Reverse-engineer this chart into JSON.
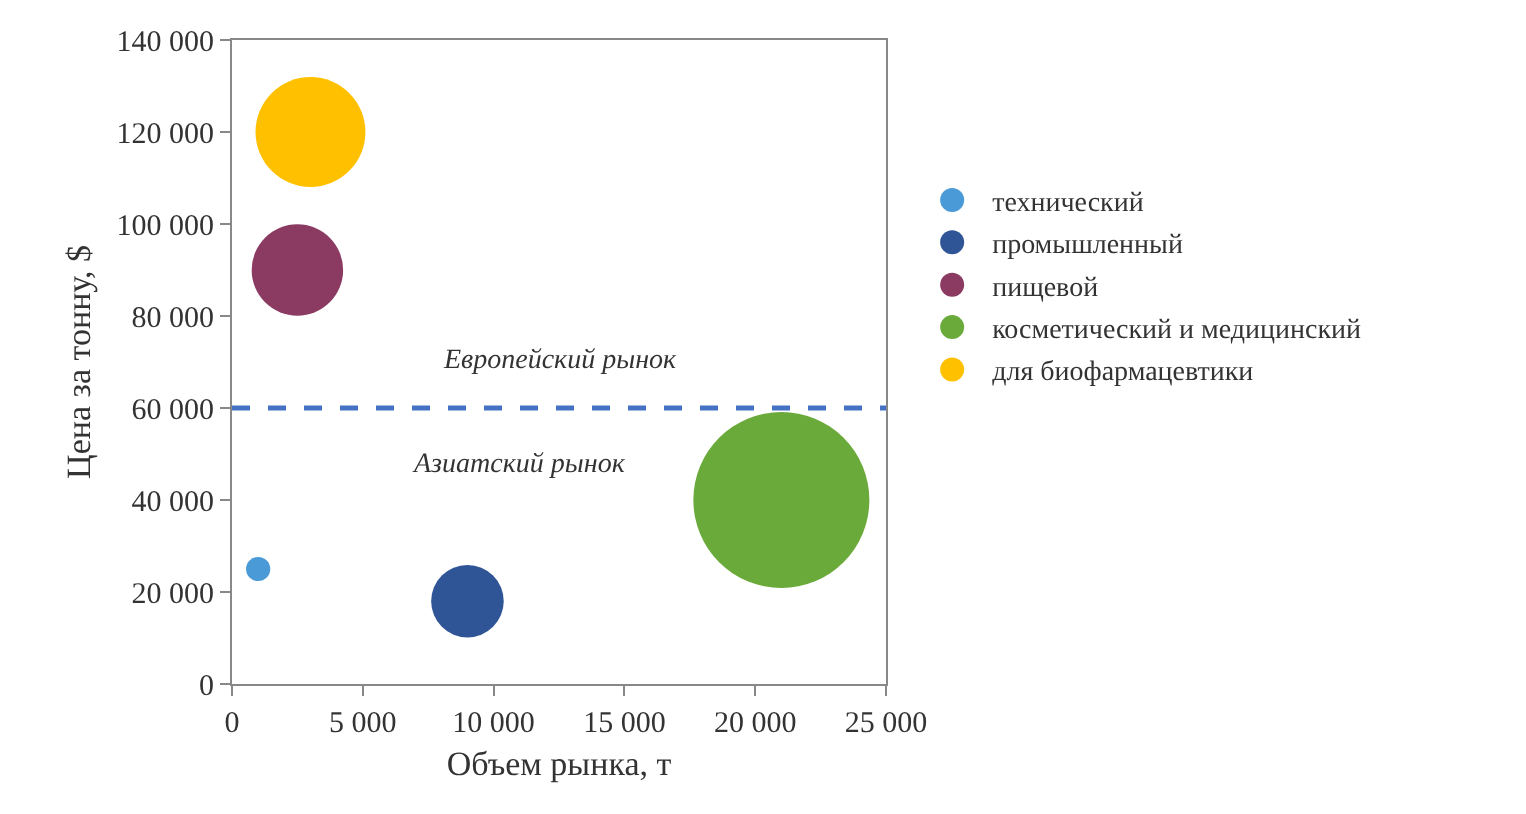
{
  "chart_data": {
    "type": "bubble",
    "xlabel": "Объем рынка, т",
    "ylabel": "Цена за тонну, $",
    "xlim": [
      0,
      25000
    ],
    "xticks": [
      0,
      {
        "value": 5000,
        "label": "5 000"
      },
      {
        "value": 10000,
        "label": "10 000"
      },
      {
        "value": 15000,
        "label": "15 000"
      },
      {
        "value": 20000,
        "label": "20 000"
      },
      {
        "value": 25000,
        "label": "25 000"
      }
    ],
    "ylim": [
      0,
      140000
    ],
    "yticks": [
      0,
      {
        "value": 20000,
        "label": "20 000"
      },
      {
        "value": 40000,
        "label": "40 000"
      },
      {
        "value": 60000,
        "label": "60 000"
      },
      {
        "value": 80000,
        "label": "80 000"
      },
      {
        "value": 100000,
        "label": "100 000"
      },
      {
        "value": 120000,
        "label": "120 000"
      },
      {
        "value": 140000,
        "label": "140 000"
      }
    ],
    "series": [
      {
        "name": "технический",
        "color": "#4a9ad8",
        "x": [
          1000
        ],
        "values": [
          25000
        ],
        "sizes": [
          0.019
        ]
      },
      {
        "name": "промышленный",
        "color": "#2f5596",
        "x": [
          9000
        ],
        "values": [
          18000
        ],
        "sizes": [
          0.17
        ]
      },
      {
        "name": "пищевой",
        "color": "#8b3a62",
        "x": [
          2500
        ],
        "values": [
          90000
        ],
        "sizes": [
          0.27
        ]
      },
      {
        "name": "косметический и медицинский",
        "color": "#6aaa3a",
        "x": [
          21000
        ],
        "values": [
          40000
        ],
        "sizes": [
          1
        ]
      },
      {
        "name": "для биофармацевтики",
        "color": "#ffc000",
        "x": [
          3000
        ],
        "values": [
          120000
        ],
        "sizes": [
          0.39
        ]
      }
    ],
    "ref_lines": [
      {
        "axis": "y",
        "value": 60000,
        "color": "#4472c4",
        "line_style": "dashed"
      }
    ],
    "annotations": [
      "Европейский рынок",
      "Азиатский рынок"
    ],
    "grid": false,
    "legend": "right"
  }
}
